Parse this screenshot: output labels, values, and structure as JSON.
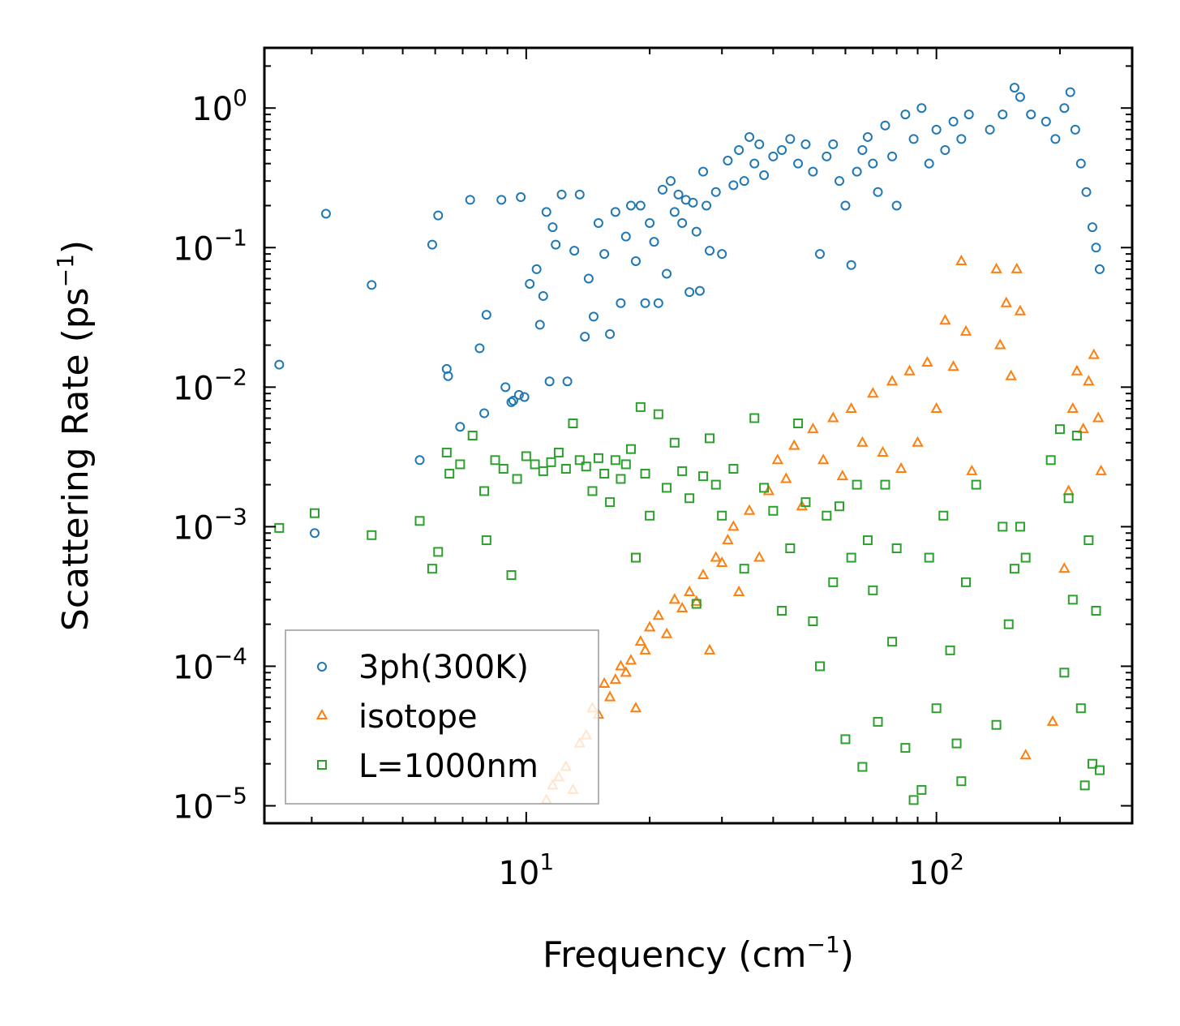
{
  "chart_data": {
    "type": "scatter",
    "xscale": "log",
    "yscale": "log",
    "xlabel": "Frequency (cm",
    "xlabel_unit_exp": "−1",
    "xlabel_close": ")",
    "ylabel": "Scattering Rate (ps",
    "ylabel_unit_exp": "−1",
    "ylabel_close": ")",
    "xlim": [
      2.3,
      300
    ],
    "ylim": [
      7.5e-06,
      2.7
    ],
    "x_ticks": [
      {
        "value": 10,
        "base": "10",
        "exp": "1"
      },
      {
        "value": 100,
        "base": "10",
        "exp": "2"
      }
    ],
    "y_ticks": [
      {
        "value": 1e-05,
        "base": "10",
        "exp": "−5"
      },
      {
        "value": 0.0001,
        "base": "10",
        "exp": "−4"
      },
      {
        "value": 0.001,
        "base": "10",
        "exp": "−3"
      },
      {
        "value": 0.01,
        "base": "10",
        "exp": "−2"
      },
      {
        "value": 0.1,
        "base": "10",
        "exp": "−1"
      },
      {
        "value": 1,
        "base": "10",
        "exp": "0"
      }
    ],
    "legend_position": "lower-left",
    "series": [
      {
        "name": "3ph(300K)",
        "marker": "circle",
        "color": "#1f77b4",
        "points": [
          [
            2.5,
            0.0145
          ],
          [
            3.05,
            0.0009
          ],
          [
            3.25,
            0.175
          ],
          [
            4.2,
            0.054
          ],
          [
            5.5,
            0.003
          ],
          [
            5.9,
            0.105
          ],
          [
            6.1,
            0.17
          ],
          [
            6.4,
            0.0135
          ],
          [
            6.45,
            0.012
          ],
          [
            6.9,
            0.0052
          ],
          [
            7.3,
            0.22
          ],
          [
            7.7,
            0.019
          ],
          [
            7.9,
            0.0065
          ],
          [
            8.0,
            0.033
          ],
          [
            8.7,
            0.22
          ],
          [
            8.9,
            0.01
          ],
          [
            9.2,
            0.0078
          ],
          [
            9.3,
            0.008
          ],
          [
            9.6,
            0.0088
          ],
          [
            9.7,
            0.23
          ],
          [
            9.9,
            0.0085
          ],
          [
            10.2,
            0.055
          ],
          [
            10.6,
            0.07
          ],
          [
            10.8,
            0.028
          ],
          [
            11.0,
            0.045
          ],
          [
            11.2,
            0.18
          ],
          [
            11.4,
            0.011
          ],
          [
            11.6,
            0.14
          ],
          [
            11.8,
            0.105
          ],
          [
            12.2,
            0.24
          ],
          [
            12.6,
            0.011
          ],
          [
            13.1,
            0.095
          ],
          [
            13.5,
            0.24
          ],
          [
            13.9,
            0.023
          ],
          [
            14.2,
            0.06
          ],
          [
            14.6,
            0.032
          ],
          [
            15.0,
            0.15
          ],
          [
            15.5,
            0.09
          ],
          [
            16.0,
            0.024
          ],
          [
            16.5,
            0.18
          ],
          [
            17.0,
            0.04
          ],
          [
            17.5,
            0.12
          ],
          [
            18.0,
            0.2
          ],
          [
            18.5,
            0.08
          ],
          [
            19.0,
            0.2
          ],
          [
            19.5,
            0.04
          ],
          [
            20.0,
            0.15
          ],
          [
            20.5,
            0.11
          ],
          [
            21.0,
            0.04
          ],
          [
            21.5,
            0.26
          ],
          [
            22.0,
            0.065
          ],
          [
            22.5,
            0.3
          ],
          [
            23.0,
            0.18
          ],
          [
            23.5,
            0.24
          ],
          [
            24.0,
            0.15
          ],
          [
            24.5,
            0.22
          ],
          [
            25.0,
            0.048
          ],
          [
            25.5,
            0.21
          ],
          [
            26.0,
            0.13
          ],
          [
            26.5,
            0.049
          ],
          [
            27.0,
            0.35
          ],
          [
            27.5,
            0.2
          ],
          [
            28.0,
            0.095
          ],
          [
            29.0,
            0.25
          ],
          [
            30.0,
            0.09
          ],
          [
            31.0,
            0.42
          ],
          [
            32.0,
            0.28
          ],
          [
            33.0,
            0.5
          ],
          [
            34.0,
            0.3
          ],
          [
            35.0,
            0.62
          ],
          [
            36.0,
            0.4
          ],
          [
            37.0,
            0.55
          ],
          [
            38.0,
            0.33
          ],
          [
            40.0,
            0.45
          ],
          [
            42.0,
            0.5
          ],
          [
            44.0,
            0.6
          ],
          [
            46.0,
            0.4
          ],
          [
            48.0,
            0.55
          ],
          [
            50.0,
            0.35
          ],
          [
            52.0,
            0.09
          ],
          [
            54.0,
            0.45
          ],
          [
            56.0,
            0.55
          ],
          [
            58.0,
            0.3
          ],
          [
            60.0,
            0.2
          ],
          [
            62.0,
            0.075
          ],
          [
            64.0,
            0.35
          ],
          [
            66.0,
            0.5
          ],
          [
            68.0,
            0.62
          ],
          [
            70.0,
            0.4
          ],
          [
            72.0,
            0.25
          ],
          [
            75.0,
            0.75
          ],
          [
            78.0,
            0.45
          ],
          [
            80.0,
            0.2
          ],
          [
            84.0,
            0.9
          ],
          [
            88.0,
            0.6
          ],
          [
            92.0,
            1.0
          ],
          [
            96.0,
            0.4
          ],
          [
            100.0,
            0.7
          ],
          [
            105.0,
            0.5
          ],
          [
            110.0,
            0.8
          ],
          [
            115.0,
            0.6
          ],
          [
            120.0,
            0.9
          ],
          [
            135.0,
            0.7
          ],
          [
            145.0,
            0.9
          ],
          [
            155.0,
            1.4
          ],
          [
            160.0,
            1.2
          ],
          [
            170.0,
            0.9
          ],
          [
            185.0,
            0.8
          ],
          [
            195.0,
            0.6
          ],
          [
            205.0,
            1.0
          ],
          [
            212.0,
            1.3
          ],
          [
            218.0,
            0.7
          ],
          [
            225.0,
            0.4
          ],
          [
            232.0,
            0.25
          ],
          [
            240.0,
            0.14
          ],
          [
            245.0,
            0.1
          ],
          [
            250.0,
            0.07
          ]
        ]
      },
      {
        "name": "isotope",
        "marker": "triangle",
        "color": "#ff7f0e",
        "points": [
          [
            11.2,
            1.1e-05
          ],
          [
            11.6,
            1.4e-05
          ],
          [
            12.0,
            1.6e-05
          ],
          [
            12.5,
            1.9e-05
          ],
          [
            13.0,
            1.3e-05
          ],
          [
            13.5,
            2.8e-05
          ],
          [
            14.0,
            3.2e-05
          ],
          [
            14.5,
            5e-05
          ],
          [
            15.0,
            4.5e-05
          ],
          [
            15.5,
            7.5e-05
          ],
          [
            16.0,
            6e-05
          ],
          [
            16.5,
            8e-05
          ],
          [
            17.0,
            0.0001
          ],
          [
            17.5,
            9e-05
          ],
          [
            18.0,
            0.00011
          ],
          [
            18.5,
            5e-05
          ],
          [
            19.0,
            0.00015
          ],
          [
            19.5,
            0.00013
          ],
          [
            20.0,
            0.00019
          ],
          [
            21.0,
            0.00023
          ],
          [
            22.0,
            0.00017
          ],
          [
            23.0,
            0.0003
          ],
          [
            24.0,
            0.00026
          ],
          [
            25.0,
            0.00034
          ],
          [
            26.0,
            0.00029
          ],
          [
            27.0,
            0.00045
          ],
          [
            28.0,
            0.00013
          ],
          [
            29.0,
            0.0006
          ],
          [
            30.0,
            0.00055
          ],
          [
            31.0,
            0.0008
          ],
          [
            32.0,
            0.001
          ],
          [
            33.0,
            0.00034
          ],
          [
            35.0,
            0.0013
          ],
          [
            37.0,
            0.0006
          ],
          [
            39.0,
            0.0018
          ],
          [
            41.0,
            0.003
          ],
          [
            43.0,
            0.0022
          ],
          [
            45.0,
            0.0038
          ],
          [
            47.0,
            0.0014
          ],
          [
            50.0,
            0.005
          ],
          [
            53.0,
            0.003
          ],
          [
            56.0,
            0.006
          ],
          [
            59.0,
            0.0023
          ],
          [
            62.0,
            0.007
          ],
          [
            66.0,
            0.004
          ],
          [
            70.0,
            0.009
          ],
          [
            74.0,
            0.0034
          ],
          [
            78.0,
            0.011
          ],
          [
            82.0,
            0.0026
          ],
          [
            86.0,
            0.013
          ],
          [
            90.0,
            0.004
          ],
          [
            95.0,
            0.015
          ],
          [
            100.0,
            0.007
          ],
          [
            105.0,
            0.03
          ],
          [
            110.0,
            0.014
          ],
          [
            115.0,
            0.08
          ],
          [
            118.0,
            0.025
          ],
          [
            122.0,
            0.0025
          ],
          [
            140.0,
            0.07
          ],
          [
            143.0,
            0.02
          ],
          [
            148.0,
            0.04
          ],
          [
            152.0,
            0.012
          ],
          [
            157.0,
            0.07
          ],
          [
            160.0,
            0.035
          ],
          [
            165.0,
            2.3e-05
          ],
          [
            192.0,
            4e-05
          ],
          [
            205.0,
            0.0005
          ],
          [
            210.0,
            0.0018
          ],
          [
            215.0,
            0.007
          ],
          [
            220.0,
            0.013
          ],
          [
            228.0,
            0.005
          ],
          [
            235.0,
            0.011
          ],
          [
            242.0,
            0.017
          ],
          [
            248.0,
            0.006
          ],
          [
            252.0,
            0.0025
          ]
        ]
      },
      {
        "name": "L=1000nm",
        "marker": "square",
        "color": "#2ca02c",
        "points": [
          [
            2.5,
            0.00098
          ],
          [
            3.05,
            0.00125
          ],
          [
            4.2,
            0.00087
          ],
          [
            5.5,
            0.0011
          ],
          [
            5.9,
            0.0005
          ],
          [
            6.1,
            0.00066
          ],
          [
            6.4,
            0.0034
          ],
          [
            6.5,
            0.0024
          ],
          [
            6.9,
            0.0028
          ],
          [
            7.4,
            0.0045
          ],
          [
            7.9,
            0.0018
          ],
          [
            8.0,
            0.0008
          ],
          [
            8.4,
            0.003
          ],
          [
            8.8,
            0.0026
          ],
          [
            9.2,
            0.00045
          ],
          [
            9.5,
            0.0022
          ],
          [
            10.0,
            0.0032
          ],
          [
            10.5,
            0.0028
          ],
          [
            11.0,
            0.0025
          ],
          [
            11.5,
            0.0029
          ],
          [
            12.0,
            0.0034
          ],
          [
            12.5,
            0.0026
          ],
          [
            13.0,
            0.0055
          ],
          [
            13.5,
            0.003
          ],
          [
            14.0,
            0.0027
          ],
          [
            14.5,
            0.0018
          ],
          [
            15.0,
            0.0031
          ],
          [
            15.5,
            0.0024
          ],
          [
            16.0,
            0.0015
          ],
          [
            16.5,
            0.003
          ],
          [
            17.0,
            0.0022
          ],
          [
            17.5,
            0.0028
          ],
          [
            18.0,
            0.0036
          ],
          [
            18.5,
            0.0006
          ],
          [
            19.0,
            0.0072
          ],
          [
            19.5,
            0.0024
          ],
          [
            20.0,
            0.0012
          ],
          [
            21.0,
            0.0064
          ],
          [
            22.0,
            0.0019
          ],
          [
            23.0,
            0.004
          ],
          [
            24.0,
            0.0025
          ],
          [
            25.0,
            0.0016
          ],
          [
            26.0,
            0.00028
          ],
          [
            27.0,
            0.0023
          ],
          [
            28.0,
            0.0043
          ],
          [
            29.0,
            0.002
          ],
          [
            30.0,
            0.0012
          ],
          [
            32.0,
            0.0026
          ],
          [
            34.0,
            0.0005
          ],
          [
            36.0,
            0.006
          ],
          [
            38.0,
            0.0019
          ],
          [
            40.0,
            0.0013
          ],
          [
            42.0,
            0.00025
          ],
          [
            44.0,
            0.0007
          ],
          [
            46.0,
            0.0055
          ],
          [
            48.0,
            0.0015
          ],
          [
            50.0,
            0.00021
          ],
          [
            52.0,
            0.0001
          ],
          [
            54.0,
            0.0012
          ],
          [
            56.0,
            0.0004
          ],
          [
            58.0,
            0.0014
          ],
          [
            60.0,
            3e-05
          ],
          [
            62.0,
            0.0006
          ],
          [
            64.0,
            0.002
          ],
          [
            66.0,
            1.9e-05
          ],
          [
            68.0,
            0.0008
          ],
          [
            70.0,
            0.00035
          ],
          [
            72.0,
            4e-05
          ],
          [
            75.0,
            0.002
          ],
          [
            78.0,
            0.00015
          ],
          [
            80.0,
            0.0007
          ],
          [
            84.0,
            2.6e-05
          ],
          [
            88.0,
            1.1e-05
          ],
          [
            92.0,
            1.3e-05
          ],
          [
            96.0,
            0.0006
          ],
          [
            100.0,
            5e-05
          ],
          [
            104.0,
            0.0012
          ],
          [
            108.0,
            0.00013
          ],
          [
            112.0,
            2.8e-05
          ],
          [
            115.0,
            1.5e-05
          ],
          [
            118.0,
            0.0004
          ],
          [
            125.0,
            0.002
          ],
          [
            140.0,
            3.8e-05
          ],
          [
            145.0,
            0.001
          ],
          [
            150.0,
            0.0002
          ],
          [
            155.0,
            0.0005
          ],
          [
            160.0,
            0.001
          ],
          [
            165.0,
            0.0006
          ],
          [
            190.0,
            0.003
          ],
          [
            200.0,
            0.005
          ],
          [
            205.0,
            9e-05
          ],
          [
            210.0,
            0.0016
          ],
          [
            215.0,
            0.0003
          ],
          [
            220.0,
            0.0045
          ],
          [
            225.0,
            5e-05
          ],
          [
            230.0,
            1.4e-05
          ],
          [
            235.0,
            0.0008
          ],
          [
            240.0,
            2e-05
          ],
          [
            245.0,
            0.00025
          ],
          [
            250.0,
            1.8e-05
          ]
        ]
      }
    ]
  }
}
